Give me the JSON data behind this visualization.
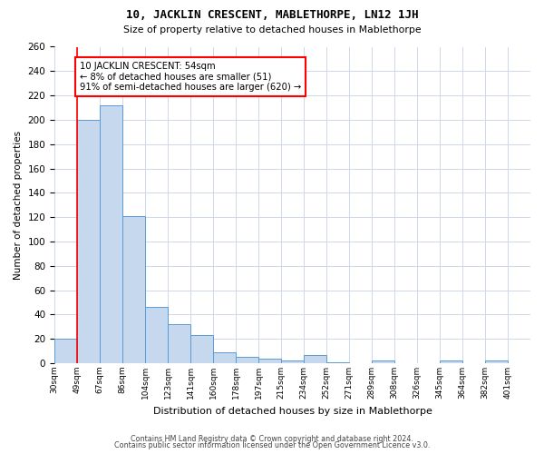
{
  "title1": "10, JACKLIN CRESCENT, MABLETHORPE, LN12 1JH",
  "title2": "Size of property relative to detached houses in Mablethorpe",
  "xlabel": "Distribution of detached houses by size in Mablethorpe",
  "ylabel": "Number of detached properties",
  "bar_values": [
    20,
    200,
    212,
    121,
    46,
    32,
    23,
    9,
    5,
    4,
    2,
    7,
    1,
    0,
    2,
    0,
    0,
    2,
    0,
    2
  ],
  "bar_labels": [
    "30sqm",
    "49sqm",
    "67sqm",
    "86sqm",
    "104sqm",
    "123sqm",
    "141sqm",
    "160sqm",
    "178sqm",
    "197sqm",
    "215sqm",
    "234sqm",
    "252sqm",
    "271sqm",
    "289sqm",
    "308sqm",
    "326sqm",
    "345sqm",
    "364sqm",
    "382sqm",
    "401sqm"
  ],
  "bar_color": "#c5d8ed",
  "bar_edge_color": "#5b9bd5",
  "annotation_text": "10 JACKLIN CRESCENT: 54sqm\n← 8% of detached houses are smaller (51)\n91% of semi-detached houses are larger (620) →",
  "annotation_box_color": "white",
  "annotation_box_edge_color": "red",
  "red_line_index": 1,
  "ylim": [
    0,
    260
  ],
  "yticks": [
    0,
    20,
    40,
    60,
    80,
    100,
    120,
    140,
    160,
    180,
    200,
    220,
    240,
    260
  ],
  "footer1": "Contains HM Land Registry data © Crown copyright and database right 2024.",
  "footer2": "Contains public sector information licensed under the Open Government Licence v3.0.",
  "bg_color": "#ffffff",
  "grid_color": "#d0d8e8"
}
